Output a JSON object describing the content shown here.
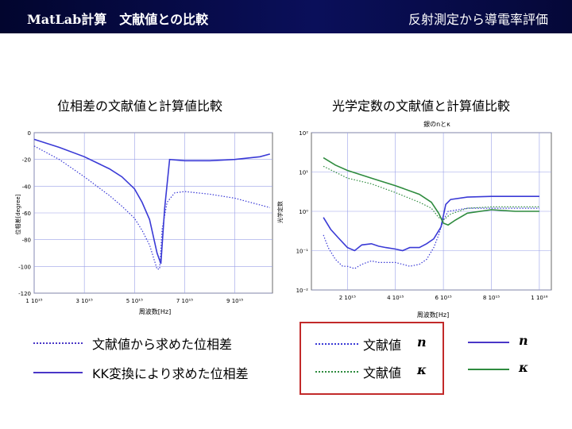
{
  "header": {
    "left_title": "MatLab計算　文献値との比較",
    "right_title": "反射測定から導電率評価"
  },
  "left_title": "位相差の文献値と計算値比較",
  "right_title": "光学定数の文献値と計算値比較",
  "chart_data": [
    {
      "type": "line",
      "title": "",
      "xlabel": "周波数[Hz]",
      "ylabel": "位相差[degree]",
      "xlim": [
        1,
        10.5
      ],
      "ylim": [
        -120,
        0
      ],
      "x_ticks": [
        "1 10¹⁵",
        "3 10¹⁵",
        "5 10¹⁵",
        "7 10¹⁵",
        "9 10¹⁵"
      ],
      "y_ticks": [
        "0",
        "-20",
        "-40",
        "-60",
        "-80",
        "-100",
        "-120"
      ],
      "series": [
        {
          "name": "文献値から求めた位相差",
          "style": "dotted",
          "color": "#3a3ad6",
          "x": [
            1.0,
            2.0,
            3.0,
            4.0,
            4.5,
            5.0,
            5.3,
            5.6,
            5.9,
            6.0,
            6.1,
            6.3,
            6.6,
            7.0,
            8.0,
            9.0,
            10.4
          ],
          "y": [
            -10,
            -20,
            -33,
            -47,
            -55,
            -64,
            -73,
            -84,
            -102,
            -102,
            -72,
            -52,
            -45,
            -44,
            -46,
            -49,
            -56
          ]
        },
        {
          "name": "KK変換により求めた位相差",
          "style": "solid",
          "color": "#3a3ad6",
          "x": [
            1.0,
            2.0,
            3.0,
            4.0,
            4.5,
            5.0,
            5.3,
            5.6,
            5.9,
            6.05,
            6.2,
            6.4,
            7.0,
            8.0,
            9.0,
            10.0,
            10.4
          ],
          "y": [
            -5,
            -11,
            -18,
            -27,
            -33,
            -42,
            -52,
            -65,
            -90,
            -98,
            -57,
            -20,
            -21,
            -21,
            -20,
            -18,
            -16
          ]
        }
      ]
    },
    {
      "type": "line",
      "title": "銀のnとκ",
      "xlabel": "周波数[Hz]",
      "ylabel": "光学定数",
      "yscale": "log",
      "xlim": [
        0.5,
        10.5
      ],
      "ylim": [
        0.01,
        100
      ],
      "x_ticks": [
        "2 10¹⁵",
        "4 10¹⁵",
        "6 10¹⁵",
        "8 10¹⁵",
        "1 10¹⁶"
      ],
      "y_ticks": [
        "10²",
        "10¹",
        "10⁰",
        "10⁻¹",
        "10⁻²"
      ],
      "series": [
        {
          "name": "文献値 n",
          "style": "dotted",
          "color": "#3a3ad6",
          "x": [
            1.0,
            1.2,
            1.5,
            1.8,
            2.0,
            2.3,
            2.6,
            3.0,
            3.3,
            3.6,
            4.0,
            4.3,
            4.6,
            5.0,
            5.3,
            5.6,
            5.8,
            6.0,
            6.2,
            7.0,
            8.0,
            9.0,
            10.0
          ],
          "y": [
            0.25,
            0.12,
            0.06,
            0.04,
            0.04,
            0.035,
            0.045,
            0.055,
            0.05,
            0.05,
            0.05,
            0.045,
            0.04,
            0.045,
            0.06,
            0.12,
            0.25,
            0.6,
            1.0,
            1.2,
            1.2,
            1.2,
            1.2
          ]
        },
        {
          "name": "文献値 κ",
          "style": "dotted",
          "color": "#2e8b3e",
          "x": [
            1.0,
            2.0,
            3.0,
            4.0,
            5.0,
            5.5,
            5.8,
            6.0,
            6.3,
            7.0,
            8.0,
            9.0,
            10.0
          ],
          "y": [
            14,
            7,
            5,
            3,
            1.7,
            1.2,
            0.7,
            0.6,
            0.85,
            1.2,
            1.3,
            1.3,
            1.3
          ]
        },
        {
          "name": "n",
          "style": "solid",
          "color": "#3a3ad6",
          "x": [
            1.0,
            1.3,
            1.6,
            2.0,
            2.3,
            2.6,
            3.0,
            3.3,
            3.6,
            4.0,
            4.3,
            4.6,
            5.0,
            5.3,
            5.6,
            5.9,
            6.1,
            6.3,
            7.0,
            8.0,
            9.0,
            10.0
          ],
          "y": [
            0.7,
            0.35,
            0.22,
            0.12,
            0.1,
            0.14,
            0.15,
            0.13,
            0.12,
            0.11,
            0.1,
            0.12,
            0.12,
            0.15,
            0.2,
            0.4,
            1.5,
            2.0,
            2.3,
            2.4,
            2.4,
            2.4
          ]
        },
        {
          "name": "κ",
          "style": "solid",
          "color": "#2e8b3e",
          "x": [
            1.0,
            1.5,
            2.0,
            3.0,
            4.0,
            5.0,
            5.5,
            5.8,
            6.0,
            6.2,
            6.5,
            7.0,
            8.0,
            9.0,
            10.0
          ],
          "y": [
            23,
            15,
            11,
            7,
            4.5,
            2.7,
            1.7,
            0.9,
            0.5,
            0.45,
            0.6,
            0.9,
            1.1,
            1.0,
            1.0
          ]
        }
      ]
    }
  ],
  "legend_left": [
    {
      "label": "文献値から求めた位相差",
      "style": "dotted",
      "color": "#4a37c7"
    },
    {
      "label": "KK変換により求めた位相差",
      "style": "solid",
      "color": "#4a37c7"
    }
  ],
  "legend_mid": [
    {
      "label": "文献値",
      "sym": "n",
      "style": "dotted",
      "color": "#3a3ad6"
    },
    {
      "label": "文献値",
      "sym": "κ",
      "style": "dotted",
      "color": "#2e8b3e"
    }
  ],
  "legend_right": [
    {
      "sym": "n",
      "style": "solid",
      "color": "#4a37c7"
    },
    {
      "sym": "κ",
      "style": "solid",
      "color": "#2e8b3e"
    }
  ]
}
